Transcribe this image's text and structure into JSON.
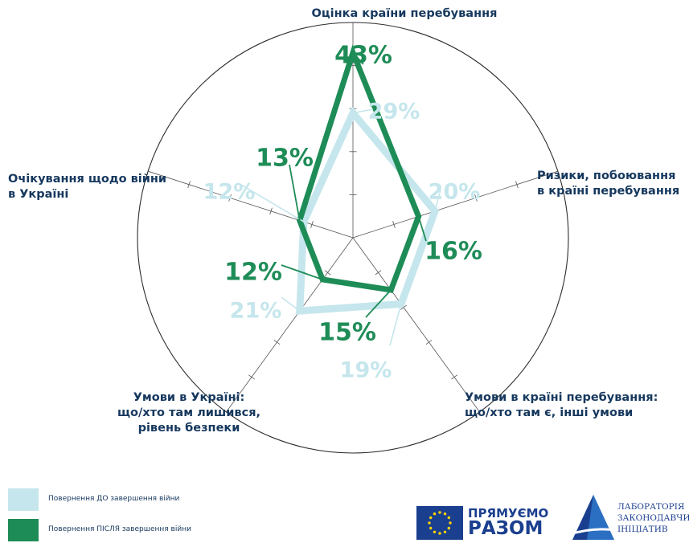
{
  "chart_data": {
    "type": "radar",
    "axes": [
      "Оцінка країни перебування",
      "Ризики, побоювання\nв країні перебування",
      "Умови в країні перебування:\nщо/хто там є, інші умови",
      "Умови в Україні:\nщо/хто там лишився,\nрівень безпеки",
      "Очікування щодо війни\nв Україні"
    ],
    "rlim": [
      0,
      50
    ],
    "series": [
      {
        "name": "Повернення ДО завершення війни",
        "color": "#c5e6ec",
        "values": [
          29,
          20,
          19,
          21,
          12
        ]
      },
      {
        "name": "Повернення ПІСЛЯ завершення війни",
        "color": "#1e8c57",
        "values": [
          43,
          16,
          15,
          12,
          13
        ]
      }
    ],
    "data_labels": {
      "before": [
        "29%",
        "20%",
        "19%",
        "21%",
        "12%"
      ],
      "after": [
        "43%",
        "16%",
        "15%",
        "12%",
        "13%"
      ]
    },
    "legend_position": "bottom-left",
    "grid": true
  },
  "legend": [
    {
      "label": "Повернення ДО завершення війни",
      "color": "#c5e6ec"
    },
    {
      "label": "Повернення ПІСЛЯ завершення війни",
      "color": "#1e8c57"
    }
  ],
  "logos": {
    "eu_brand": {
      "line1": "ПРЯМУЄМО",
      "line2": "РАЗОМ"
    },
    "lab": {
      "line1": "ЛАБОРАТОРІЯ",
      "line2": "ЗАКОНОДАВЧИХ",
      "line3": "ІНІЦІАТИВ"
    }
  }
}
